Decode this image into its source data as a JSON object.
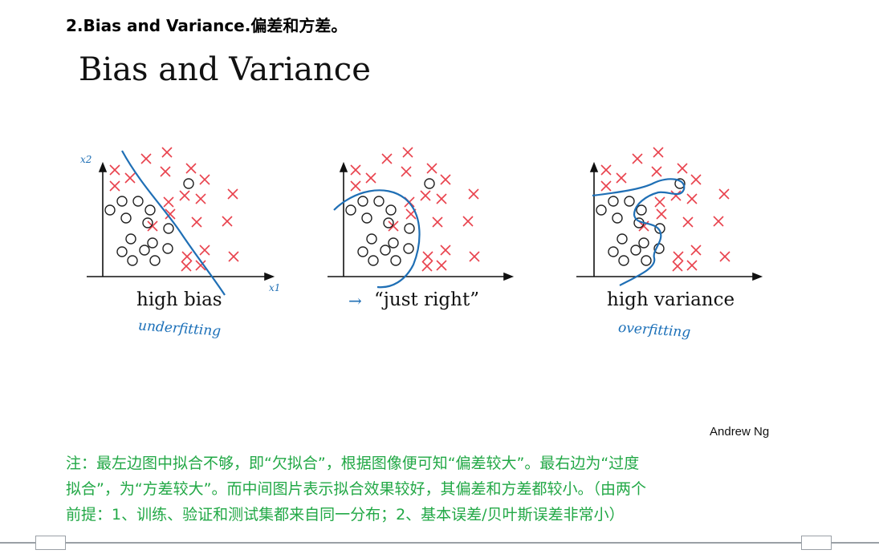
{
  "heading": "2.Bias and Variance.偏差和方差。",
  "slide_title": "Bias and Variance",
  "panels": [
    {
      "label": "high bias",
      "handwritten_note": "underfitting",
      "axis_labels": {
        "y": "x2",
        "x": "x1"
      }
    },
    {
      "label": "“just right”",
      "arrow": "→"
    },
    {
      "label": "high variance",
      "handwritten_note": "overfitting"
    }
  ],
  "author": "Andrew Ng",
  "note_lines": [
    "注：最左边图中拟合不够，即“欠拟合”，根据图像便可知“偏差较大”。最右边为“过度",
    "拟合”，为“方差较大”。而中间图片表示拟合效果较好，其偏差和方差都较小。（由两个",
    "前提：1、训练、验证和测试集都来自同一分布；2、基本误差/贝叶斯误差非常小）"
  ],
  "colors": {
    "cross": "#e8424d",
    "circle": "#222222",
    "curve": "#1f6fb5",
    "note": "#22a846"
  }
}
